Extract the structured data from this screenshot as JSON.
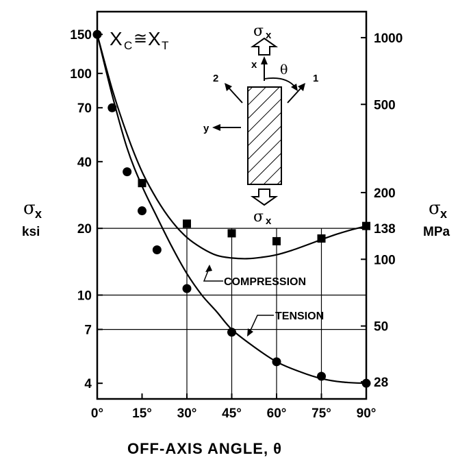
{
  "chart_data": {
    "type": "scatter",
    "annotation": {
      "main": "X",
      "sub1": "C",
      "approx": "≅",
      "sub2": "T"
    },
    "xlabel": "OFF-AXIS ANGLE, θ",
    "ylabel_left": {
      "symbol": "σ",
      "sub": "x",
      "unit": "ksi"
    },
    "ylabel_right": {
      "symbol": "σ",
      "sub": "x",
      "unit": "MPa"
    },
    "x_ticks": [
      "0°",
      "15°",
      "30°",
      "45°",
      "60°",
      "75°",
      "90°"
    ],
    "xlim": [
      0,
      90
    ],
    "yscale": "log",
    "ylim": [
      3.4,
      190
    ],
    "y_ticks_left": [
      150,
      100,
      70,
      40,
      20,
      10,
      7,
      4
    ],
    "y_ticks_right": [
      "1000",
      "500",
      "200",
      "138",
      "100",
      "50",
      "28"
    ],
    "series": [
      {
        "name": "TENSION",
        "marker": "circle",
        "points": [
          [
            0,
            150
          ],
          [
            5,
            70
          ],
          [
            10,
            36
          ],
          [
            15,
            24
          ],
          [
            20,
            16
          ],
          [
            30,
            10.7
          ],
          [
            45,
            6.8
          ],
          [
            60,
            5
          ],
          [
            75,
            4.3
          ],
          [
            90,
            4
          ]
        ],
        "curve": [
          [
            0,
            150
          ],
          [
            5,
            80
          ],
          [
            10,
            46
          ],
          [
            15,
            31
          ],
          [
            20,
            22.5
          ],
          [
            25,
            16.5
          ],
          [
            30,
            12.5
          ],
          [
            35,
            10
          ],
          [
            40,
            8.4
          ],
          [
            45,
            7
          ],
          [
            52,
            5.9
          ],
          [
            60,
            5
          ],
          [
            68,
            4.5
          ],
          [
            75,
            4.2
          ],
          [
            82,
            4.05
          ],
          [
            90,
            4
          ]
        ]
      },
      {
        "name": "COMPRESSION",
        "marker": "square",
        "points": [
          [
            15,
            32
          ],
          [
            30,
            21
          ],
          [
            45,
            19
          ],
          [
            60,
            17.5
          ],
          [
            75,
            18
          ],
          [
            90,
            20.5
          ]
        ],
        "curve": [
          [
            0,
            150
          ],
          [
            5,
            85
          ],
          [
            10,
            53
          ],
          [
            15,
            36
          ],
          [
            20,
            27
          ],
          [
            25,
            21.5
          ],
          [
            30,
            18.2
          ],
          [
            35,
            16.3
          ],
          [
            40,
            15.1
          ],
          [
            45,
            14.7
          ],
          [
            50,
            14.6
          ],
          [
            55,
            14.8
          ],
          [
            60,
            15.2
          ],
          [
            65,
            15.9
          ],
          [
            70,
            16.8
          ],
          [
            75,
            17.8
          ],
          [
            80,
            18.8
          ],
          [
            85,
            19.7
          ],
          [
            90,
            20.5
          ]
        ]
      }
    ],
    "inset": {
      "top_stress": {
        "symbol": "σ",
        "sub": "x"
      },
      "bottom_stress": {
        "symbol": "σ",
        "sub": "x"
      },
      "axis_x": "x",
      "axis_y": "y",
      "angle": "θ",
      "fiber_1": "1",
      "fiber_2": "2"
    }
  }
}
